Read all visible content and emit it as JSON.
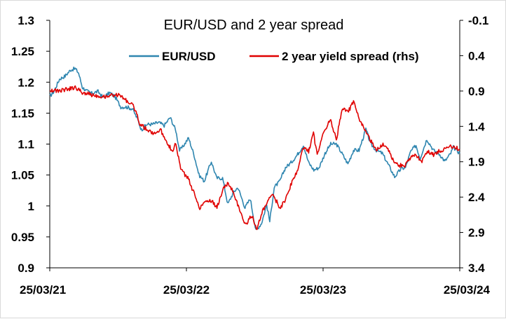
{
  "chart_data": {
    "type": "line",
    "title": "EUR/USD and 2 year spread",
    "xlabel": "",
    "ylabel": "",
    "x_ticks": [
      "25/03/21",
      "25/03/22",
      "25/03/23",
      "25/03/24"
    ],
    "x_range": [
      "2021-03-25",
      "2024-03-25"
    ],
    "y_left": {
      "ylim": [
        0.9,
        1.3
      ],
      "ticks": [
        "1.3",
        "1.25",
        "1.2",
        "1.15",
        "1.1",
        "1.05",
        "1",
        "0.95",
        "0.9"
      ]
    },
    "y_right": {
      "ylim": [
        -0.1,
        3.4
      ],
      "inverted": true,
      "ticks": [
        "-0.1",
        "0.4",
        "0.9",
        "1.4",
        "1.9",
        "2.4",
        "2.9",
        "3.4"
      ]
    },
    "legend_position": "top",
    "grid": false,
    "series": [
      {
        "name": "EUR/USD",
        "axis": "left",
        "color": "#2f86b0",
        "points": [
          [
            "2021-03-25",
            1.177
          ],
          [
            "2021-04-05",
            1.185
          ],
          [
            "2021-04-20",
            1.205
          ],
          [
            "2021-05-05",
            1.21
          ],
          [
            "2021-05-20",
            1.22
          ],
          [
            "2021-06-01",
            1.222
          ],
          [
            "2021-06-10",
            1.215
          ],
          [
            "2021-06-20",
            1.192
          ],
          [
            "2021-07-01",
            1.186
          ],
          [
            "2021-07-15",
            1.182
          ],
          [
            "2021-08-01",
            1.185
          ],
          [
            "2021-08-15",
            1.175
          ],
          [
            "2021-09-01",
            1.183
          ],
          [
            "2021-09-15",
            1.177
          ],
          [
            "2021-10-01",
            1.16
          ],
          [
            "2021-10-15",
            1.16
          ],
          [
            "2021-11-01",
            1.157
          ],
          [
            "2021-11-15",
            1.14
          ],
          [
            "2021-11-25",
            1.123
          ],
          [
            "2021-12-10",
            1.132
          ],
          [
            "2021-12-25",
            1.132
          ],
          [
            "2022-01-10",
            1.135
          ],
          [
            "2022-01-25",
            1.13
          ],
          [
            "2022-02-10",
            1.143
          ],
          [
            "2022-02-25",
            1.122
          ],
          [
            "2022-03-07",
            1.09
          ],
          [
            "2022-03-15",
            1.095
          ],
          [
            "2022-03-31",
            1.11
          ],
          [
            "2022-04-15",
            1.082
          ],
          [
            "2022-04-28",
            1.05
          ],
          [
            "2022-05-12",
            1.04
          ],
          [
            "2022-05-31",
            1.072
          ],
          [
            "2022-06-14",
            1.045
          ],
          [
            "2022-06-30",
            1.045
          ],
          [
            "2022-07-14",
            1.003
          ],
          [
            "2022-07-29",
            1.022
          ],
          [
            "2022-08-10",
            1.03
          ],
          [
            "2022-08-29",
            0.997
          ],
          [
            "2022-09-12",
            1.012
          ],
          [
            "2022-09-27",
            0.96
          ],
          [
            "2022-10-12",
            0.972
          ],
          [
            "2022-10-26",
            1.002
          ],
          [
            "2022-11-03",
            0.975
          ],
          [
            "2022-11-15",
            1.03
          ],
          [
            "2022-11-30",
            1.04
          ],
          [
            "2022-12-15",
            1.062
          ],
          [
            "2022-12-30",
            1.07
          ],
          [
            "2023-01-15",
            1.082
          ],
          [
            "2023-02-01",
            1.098
          ],
          [
            "2023-02-15",
            1.07
          ],
          [
            "2023-03-01",
            1.058
          ],
          [
            "2023-03-15",
            1.062
          ],
          [
            "2023-03-31",
            1.085
          ],
          [
            "2023-04-15",
            1.1
          ],
          [
            "2023-04-30",
            1.1
          ],
          [
            "2023-05-15",
            1.085
          ],
          [
            "2023-05-31",
            1.068
          ],
          [
            "2023-06-15",
            1.09
          ],
          [
            "2023-06-30",
            1.09
          ],
          [
            "2023-07-18",
            1.124
          ],
          [
            "2023-07-31",
            1.1
          ],
          [
            "2023-08-15",
            1.09
          ],
          [
            "2023-08-31",
            1.085
          ],
          [
            "2023-09-15",
            1.068
          ],
          [
            "2023-10-03",
            1.047
          ],
          [
            "2023-10-20",
            1.06
          ],
          [
            "2023-11-01",
            1.062
          ],
          [
            "2023-11-15",
            1.088
          ],
          [
            "2023-11-29",
            1.098
          ],
          [
            "2023-12-10",
            1.077
          ],
          [
            "2023-12-28",
            1.108
          ],
          [
            "2024-01-15",
            1.09
          ],
          [
            "2024-02-01",
            1.083
          ],
          [
            "2024-02-14",
            1.072
          ],
          [
            "2024-03-01",
            1.085
          ],
          [
            "2024-03-08",
            1.095
          ],
          [
            "2024-03-25",
            1.085
          ]
        ]
      },
      {
        "name": "2 year yield spread (rhs)",
        "axis": "right",
        "color": "#e00000",
        "points": [
          [
            "2021-03-25",
            0.88
          ],
          [
            "2021-04-15",
            0.9
          ],
          [
            "2021-05-15",
            0.87
          ],
          [
            "2021-06-01",
            0.85
          ],
          [
            "2021-06-20",
            0.92
          ],
          [
            "2021-07-15",
            0.95
          ],
          [
            "2021-08-15",
            0.98
          ],
          [
            "2021-09-15",
            0.95
          ],
          [
            "2021-10-01",
            0.97
          ],
          [
            "2021-10-20",
            1.05
          ],
          [
            "2021-11-05",
            1.12
          ],
          [
            "2021-11-20",
            1.35
          ],
          [
            "2021-12-10",
            1.45
          ],
          [
            "2021-12-28",
            1.5
          ],
          [
            "2022-01-15",
            1.45
          ],
          [
            "2022-01-31",
            1.6
          ],
          [
            "2022-02-15",
            1.75
          ],
          [
            "2022-02-25",
            1.65
          ],
          [
            "2022-03-10",
            2.0
          ],
          [
            "2022-03-31",
            2.15
          ],
          [
            "2022-04-15",
            2.35
          ],
          [
            "2022-04-30",
            2.55
          ],
          [
            "2022-05-15",
            2.45
          ],
          [
            "2022-05-31",
            2.45
          ],
          [
            "2022-06-15",
            2.55
          ],
          [
            "2022-06-30",
            2.3
          ],
          [
            "2022-07-15",
            2.2
          ],
          [
            "2022-07-31",
            2.35
          ],
          [
            "2022-08-15",
            2.6
          ],
          [
            "2022-08-31",
            2.8
          ],
          [
            "2022-09-15",
            2.65
          ],
          [
            "2022-09-30",
            2.85
          ],
          [
            "2022-10-15",
            2.6
          ],
          [
            "2022-10-31",
            2.45
          ],
          [
            "2022-11-10",
            2.35
          ],
          [
            "2022-11-30",
            2.55
          ],
          [
            "2022-12-15",
            2.45
          ],
          [
            "2022-12-31",
            2.2
          ],
          [
            "2023-01-15",
            2.05
          ],
          [
            "2023-01-31",
            1.7
          ],
          [
            "2023-02-15",
            1.75
          ],
          [
            "2023-02-28",
            1.5
          ],
          [
            "2023-03-10",
            1.8
          ],
          [
            "2023-03-25",
            1.5
          ],
          [
            "2023-04-15",
            1.3
          ],
          [
            "2023-04-30",
            1.6
          ],
          [
            "2023-05-15",
            1.15
          ],
          [
            "2023-05-31",
            1.2
          ],
          [
            "2023-06-15",
            1.05
          ],
          [
            "2023-06-30",
            1.3
          ],
          [
            "2023-07-15",
            1.45
          ],
          [
            "2023-07-31",
            1.6
          ],
          [
            "2023-08-15",
            1.75
          ],
          [
            "2023-08-31",
            1.65
          ],
          [
            "2023-09-15",
            1.7
          ],
          [
            "2023-09-30",
            1.9
          ],
          [
            "2023-10-15",
            1.95
          ],
          [
            "2023-10-31",
            1.95
          ],
          [
            "2023-11-15",
            1.85
          ],
          [
            "2023-11-30",
            1.8
          ],
          [
            "2023-12-15",
            1.9
          ],
          [
            "2023-12-31",
            1.75
          ],
          [
            "2024-01-15",
            1.8
          ],
          [
            "2024-01-31",
            1.75
          ],
          [
            "2024-02-15",
            1.72
          ],
          [
            "2024-02-29",
            1.68
          ],
          [
            "2024-03-10",
            1.7
          ],
          [
            "2024-03-25",
            1.72
          ]
        ]
      }
    ]
  }
}
